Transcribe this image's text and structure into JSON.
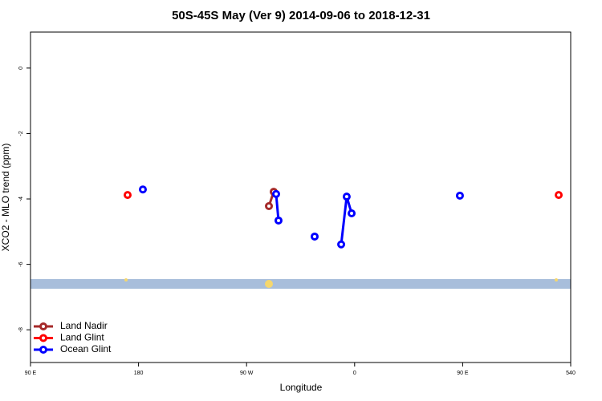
{
  "chart_data": {
    "type": "line",
    "title": "50S-45S May (Ver 9)   2014-09-06 to 2018-12-31",
    "x_label": "Longitude",
    "y_label": "XCO2 - MLO trend (ppm)",
    "xlim": [
      90,
      540
    ],
    "ylim": [
      -9,
      1.1
    ],
    "xticks": [
      {
        "value": 90,
        "label": "90 E"
      },
      180,
      {
        "value": 270,
        "label": "90 W"
      },
      {
        "value": 360,
        "label": "0"
      },
      {
        "value": 450,
        "label": "90 E"
      },
      540
    ],
    "yticks": [
      0,
      -2,
      -4,
      -6,
      -8
    ],
    "legend": "bottom-left",
    "series": [
      {
        "name": "Land Nadir",
        "color": "#a52a2a",
        "x": [
          288.6,
          292.6
        ],
        "values": [
          -4.22,
          -3.78
        ]
      },
      {
        "name": "Land Glint",
        "color": "#ff0000",
        "x": [
          170.9,
          null,
          530
        ],
        "values": [
          -3.88,
          null,
          -3.88
        ]
      },
      {
        "name": "Ocean Glint",
        "color": "#0000ff",
        "x": [
          183.6,
          null,
          294.6,
          296.6,
          null,
          326.7,
          null,
          348.8,
          353.4,
          357.5,
          null,
          447.7
        ],
        "values": [
          -3.71,
          null,
          -3.85,
          -4.66,
          null,
          -5.15,
          null,
          -5.39,
          -3.93,
          -4.44,
          null,
          -3.9
        ]
      }
    ]
  }
}
